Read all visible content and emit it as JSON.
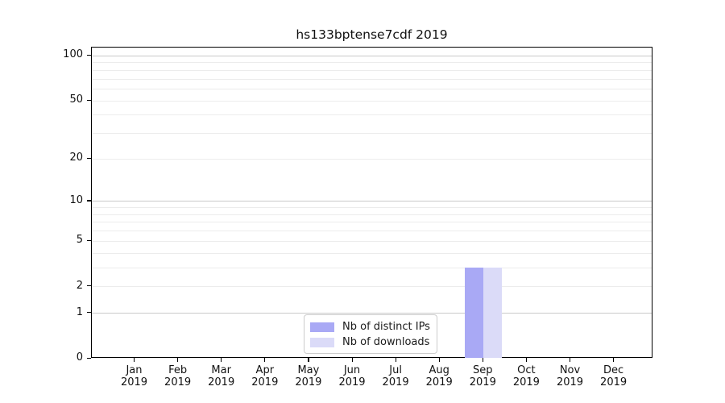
{
  "chart_data": {
    "type": "bar",
    "title": "hs133bptense7cdf 2019",
    "categories": [
      "Jan",
      "Feb",
      "Mar",
      "Apr",
      "May",
      "Jun",
      "Jul",
      "Aug",
      "Sep",
      "Oct",
      "Nov",
      "Dec"
    ],
    "category_year": "2019",
    "series": [
      {
        "name": "Nb of distinct IPs",
        "color": "#a9a9f5",
        "values": [
          0,
          0,
          0,
          0,
          0,
          0,
          0,
          0,
          3,
          0,
          0,
          0
        ]
      },
      {
        "name": "Nb of downloads",
        "color": "#dbdbf8",
        "values": [
          0,
          0,
          0,
          0,
          0,
          0,
          0,
          0,
          3,
          0,
          0,
          0
        ]
      }
    ],
    "xlabel": "",
    "ylabel": "",
    "yscale": "log10(1+v)",
    "ylim": [
      0,
      113.8
    ],
    "yticks": [
      0,
      1,
      2,
      5,
      10,
      20,
      50,
      100
    ],
    "grid_minor": [
      2,
      3,
      4,
      5,
      6,
      7,
      8,
      9,
      20,
      30,
      40,
      50,
      60,
      70,
      80,
      90
    ],
    "grid_major": [
      1,
      10,
      100
    ],
    "grid_on": true,
    "legend": {
      "position": "lower center",
      "labels": [
        "Nb of distinct IPs",
        "Nb of downloads"
      ]
    },
    "colors": {
      "bar_distinct_ips": "#a9a9f5",
      "bar_downloads": "#dbdbf8",
      "grid_minor": "#ececec",
      "grid_major": "#c9c9c9",
      "spine": "#000000",
      "text": "#111111",
      "legend_border": "#cccccc"
    }
  }
}
